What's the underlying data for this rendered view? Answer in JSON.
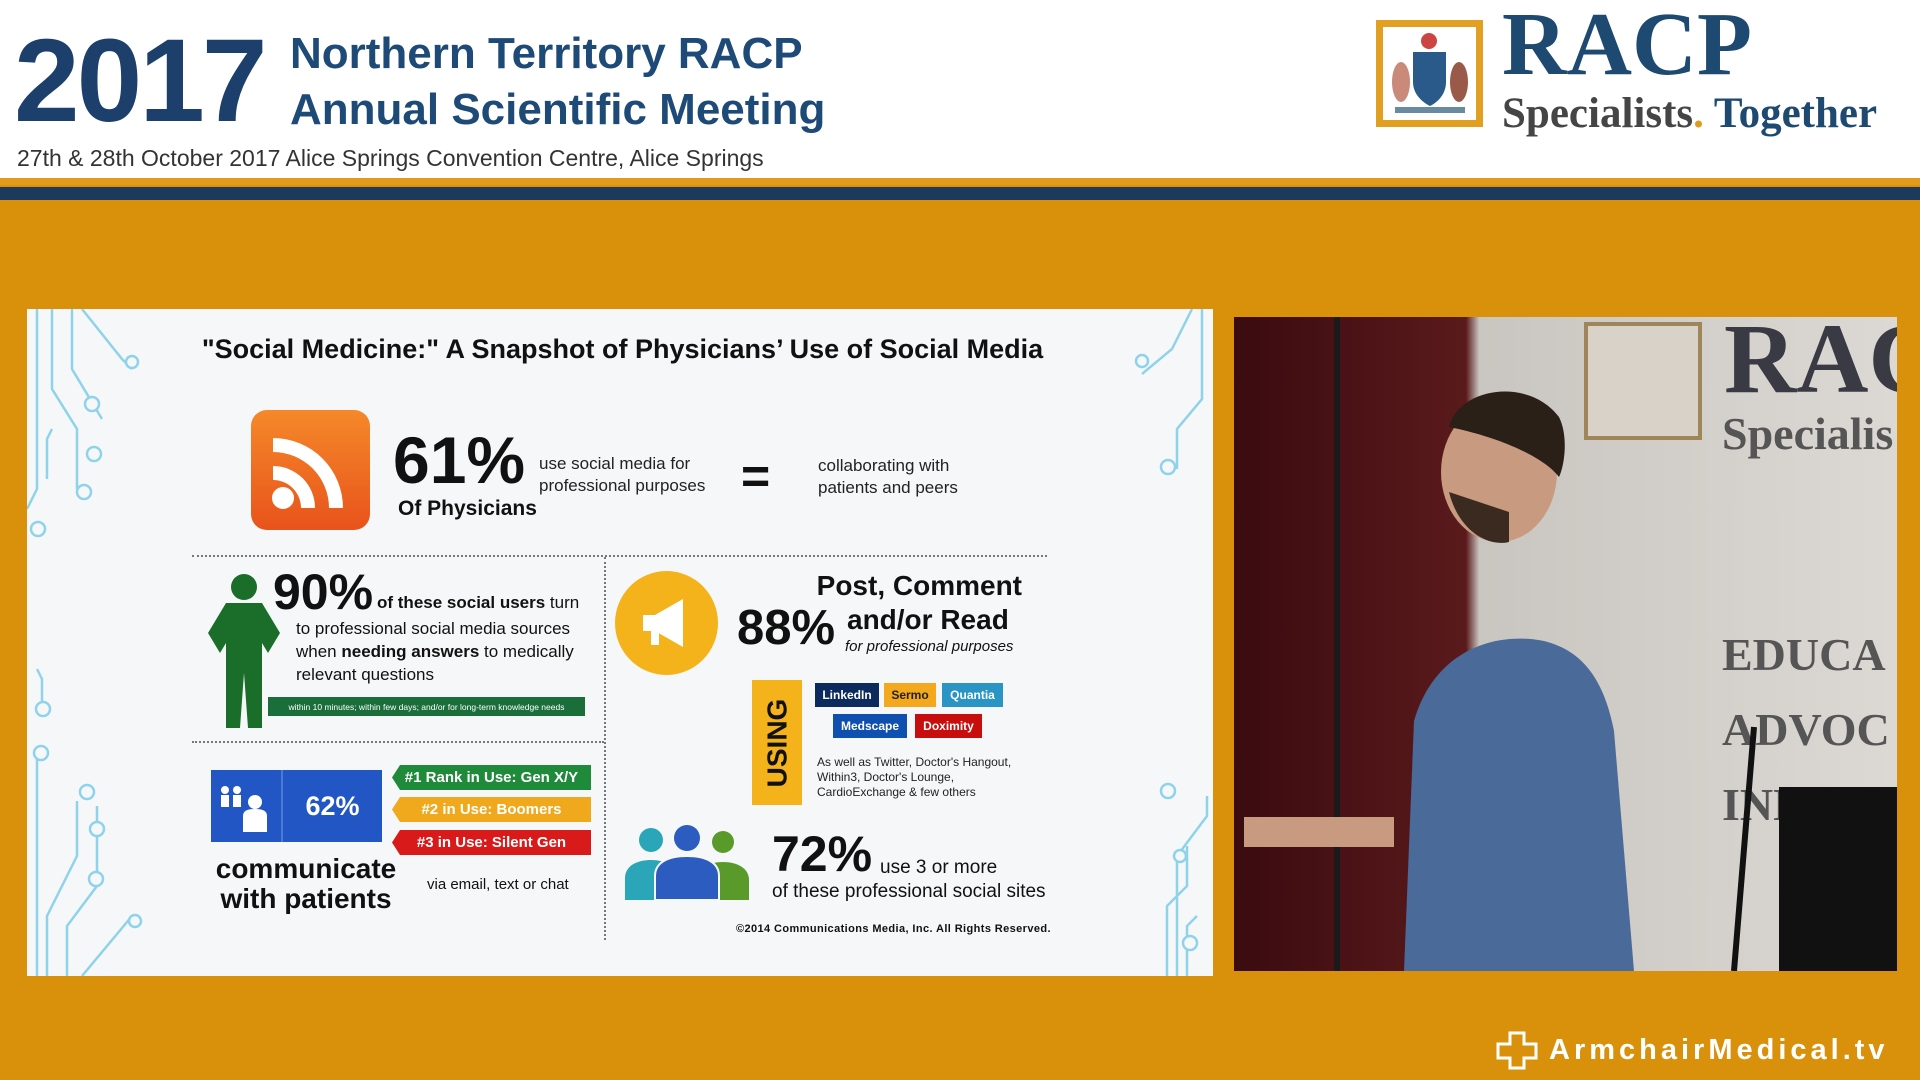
{
  "header": {
    "year": "2017",
    "title_line1": "Northern Territory RACP",
    "title_line2": "Annual Scientific Meeting",
    "dateline": "27th & 28th October 2017 Alice Springs Convention Centre, Alice Springs",
    "logo": {
      "name": "RACP",
      "tagline_a": "Specialists",
      "tagline_dot": ".",
      "tagline_b": " Together",
      "icon": "coat-of-arms-crest"
    }
  },
  "slide": {
    "title": "\"Social Medicine:\" A Snapshot of Physicians’ Use of Social Media",
    "stat1": {
      "value": "61%",
      "sub": "Of Physicians",
      "text1": "use social media for",
      "text2": "professional purposes",
      "equals": "=",
      "right1": "collaborating with",
      "right2": "patients and peers",
      "icon": "rss-icon"
    },
    "stat2": {
      "value": "90%",
      "bold": "of these social users",
      "rest": " turn",
      "line2": "to professional social media sources",
      "line3a": "when ",
      "line3b": "needing answers",
      "line3c": " to medically",
      "line4": "relevant questions",
      "note": "within 10 minutes; within few days; and/or for long-term knowledge needs",
      "icon": "doctor-icon"
    },
    "stat3": {
      "value": "62%",
      "label1": "communicate",
      "label2": "with patients",
      "via": "via email, text or chat",
      "ranks": [
        {
          "label": "#1 Rank in Use: Gen X/Y",
          "color": "#1e8a3a"
        },
        {
          "label": "#2 in Use: Boomers",
          "color": "#f0a81c"
        },
        {
          "label": "#3 in Use: Silent Gen",
          "color": "#d91a1a"
        }
      ]
    },
    "stat4": {
      "value": "88%",
      "line1": "Post, Comment",
      "line2": "and/or Read",
      "sub": "for professional purposes",
      "icon": "megaphone-icon",
      "using": "USING",
      "sites": [
        {
          "label": "LinkedIn",
          "color": "#0d2a5e"
        },
        {
          "label": "Sermo",
          "color": "#f4a81d"
        },
        {
          "label": "Quantia",
          "color": "#2a95c4"
        },
        {
          "label": "Medscape",
          "color": "#0f4fb0"
        },
        {
          "label": "Doximity",
          "color": "#c80d0d"
        }
      ],
      "others1": "As well as Twitter, Doctor's Hangout,",
      "others2": "Within3,  Doctor's Lounge,",
      "others3": "CardioExchange & few others"
    },
    "stat5": {
      "value": "72%",
      "text1": "use 3 or more",
      "text2": "of these professional social sites",
      "icon": "doctors-group-icon"
    },
    "copyright": "©2014 Communications Media, Inc. All Rights Reserved."
  },
  "video": {
    "wall_text": [
      "RAC",
      "Specialis",
      "EDUCA",
      "ADVOC",
      "INNO"
    ]
  },
  "footer": {
    "brand": "ArmchairMedical.tv",
    "icon": "medical-cross-icon"
  }
}
